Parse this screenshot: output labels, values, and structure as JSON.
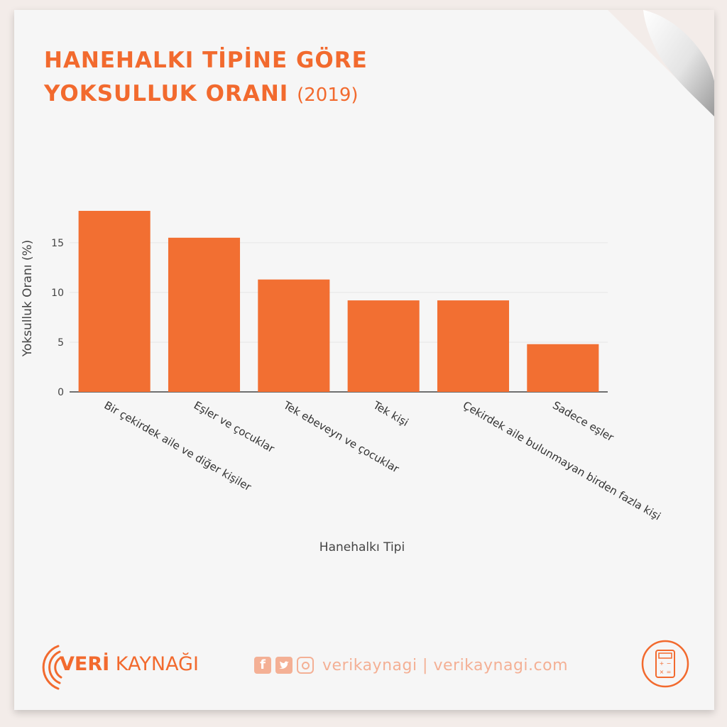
{
  "header": {
    "title_line1": "HANEHALKI TİPİNE GÖRE",
    "title_line2": "YOKSULLUK ORANI",
    "year": "(2019)"
  },
  "chart_data": {
    "type": "bar",
    "categories": [
      "Bir çekirdek aile ve diğer kişiler",
      "Eşler ve çocuklar",
      "Tek ebeveyn ve çocuklar",
      "Tek kişi",
      "Çekirdek aile bulunmayan birden fazla kişi",
      "Sadece eşler"
    ],
    "values": [
      18.2,
      15.5,
      11.3,
      9.2,
      9.2,
      4.8
    ],
    "xlabel": "Hanehalkı Tipi",
    "ylabel": "Yoksulluk Oranı (%)",
    "yticks": [
      0,
      5,
      10,
      15
    ],
    "ylim": [
      0,
      19.2
    ],
    "grid": true,
    "bar_color": "#f26f32"
  },
  "footer": {
    "brand_bold": "VERİ",
    "brand_rest": " KAYNAĞI",
    "social_handles": "verikaynagi | verikaynagi.com",
    "icons": [
      "facebook-icon",
      "twitter-icon",
      "instagram-icon",
      "calculator-icon"
    ]
  },
  "colors": {
    "accent": "#f26a2e",
    "accent_light": "#f4b095",
    "grid": "#e6e6e6"
  }
}
